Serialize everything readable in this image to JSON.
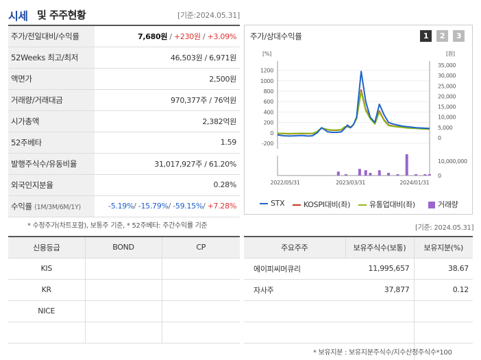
{
  "header": {
    "title_main": "시세",
    "title_rest": "및 주주현황",
    "date": "[기준:2024.05.31]"
  },
  "quote": {
    "rows": [
      {
        "label": "주가/전일대비/수익률",
        "price": "7,680원",
        "sep1": " / ",
        "change": "+230원",
        "sep2": " / ",
        "rate": "+3.09%"
      },
      {
        "label": "52Weeks 최고/최저",
        "value": "46,503원 / 6,971원"
      },
      {
        "label": "액면가",
        "value": "2,500원"
      },
      {
        "label": "거래량/거래대금",
        "value": "970,377주 / 76억원"
      },
      {
        "label": "시가총액",
        "value": "2,382억원"
      },
      {
        "label": "52주베타",
        "value": "1.59"
      },
      {
        "label": "발행주식수/유동비율",
        "value": "31,017,927주 / 61.20%"
      },
      {
        "label": "외국인지분율",
        "value": "0.28%"
      },
      {
        "label": "수익률",
        "label_sub": "(1M/3M/6M/1Y)",
        "r1": "-5.19%",
        "r2": "-15.79%",
        "r3": "-59.15%",
        "r4": "+7.28%",
        "s": "/ "
      }
    ],
    "note": "* 수정주가(차트포함), 보통주 기준, * 52주베타: 주간수익률 기준"
  },
  "chart": {
    "title": "주가/상대수익률",
    "pages": [
      "1",
      "2",
      "3"
    ],
    "left_unit": "[%]",
    "right_unit": "[원]",
    "legend": [
      "STX",
      "KOSPI대비(좌)",
      "유통업대비(좌)",
      "거래량"
    ],
    "colors": {
      "stx": "#1c64c8",
      "kospi": "#c8341c",
      "retail": "#8fba16",
      "volume": "#9966cc"
    }
  },
  "chart_data": {
    "type": "line",
    "left_axis": {
      "ticks": [
        -200,
        0,
        200,
        400,
        600,
        800,
        1000,
        1200
      ],
      "range": [
        -200,
        1300
      ]
    },
    "right_axis": {
      "ticks": [
        "0",
        "5,000",
        "10,000",
        "15,000",
        "20,000",
        "25,000",
        "30,000",
        "35,000"
      ]
    },
    "volume_axis": {
      "ticks": [
        "0",
        "10,000,000"
      ]
    },
    "x_labels": [
      "2022/05/31",
      "2023/03/31",
      "2024/01/31"
    ],
    "x": [
      0,
      4,
      8,
      12,
      16,
      20,
      23,
      26,
      29,
      33,
      36,
      39,
      42,
      44,
      46,
      48,
      50,
      52,
      55,
      58,
      61,
      64,
      67,
      70,
      73,
      76,
      79,
      82,
      85,
      88,
      91,
      94,
      97,
      100
    ],
    "series": [
      {
        "name": "STX",
        "values": [
          -40,
          -55,
          -60,
          -55,
          -50,
          -60,
          -55,
          0,
          100,
          20,
          10,
          10,
          20,
          80,
          150,
          100,
          160,
          300,
          1180,
          600,
          300,
          200,
          550,
          350,
          200,
          170,
          150,
          130,
          120,
          110,
          100,
          95,
          90,
          85
        ]
      },
      {
        "name": "KOSPI대비(좌)",
        "values": [
          -10,
          -15,
          -20,
          -15,
          -12,
          -15,
          -15,
          20,
          90,
          60,
          50,
          50,
          60,
          110,
          120,
          100,
          160,
          280,
          820,
          450,
          280,
          180,
          420,
          250,
          150,
          130,
          120,
          110,
          100,
          95,
          90,
          85,
          80,
          75
        ]
      },
      {
        "name": "유통업대비(좌)",
        "values": [
          -5,
          -10,
          -15,
          -10,
          -8,
          -10,
          -10,
          25,
          95,
          65,
          55,
          55,
          65,
          115,
          125,
          110,
          165,
          270,
          790,
          430,
          270,
          170,
          400,
          240,
          140,
          125,
          115,
          105,
          95,
          90,
          85,
          80,
          75,
          70
        ]
      }
    ],
    "volume": {
      "x": [
        40,
        45,
        54,
        58,
        61,
        67,
        73,
        79,
        85,
        91,
        97,
        100
      ],
      "values": [
        3,
        1,
        5,
        4,
        2,
        4,
        2,
        1,
        16,
        1,
        1,
        1
      ]
    }
  },
  "credit": {
    "headers": [
      "신용등급",
      "BOND",
      "CP"
    ],
    "rows": [
      {
        "name": "KIS",
        "bond": "",
        "cp": ""
      },
      {
        "name": "KR",
        "bond": "",
        "cp": ""
      },
      {
        "name": "NICE",
        "bond": "",
        "cp": ""
      },
      {
        "name": "",
        "bond": "",
        "cp": ""
      }
    ]
  },
  "holders": {
    "date": "[기준: 2024.05.31]",
    "headers": [
      "주요주주",
      "보유주식수(보통)",
      "보유지분(%)"
    ],
    "rows": [
      {
        "name": "에이피씨머큐리",
        "shares": "11,995,657",
        "pct": "38.67"
      },
      {
        "name": "자사주",
        "shares": "37,877",
        "pct": "0.12"
      },
      {
        "name": "",
        "shares": "",
        "pct": ""
      },
      {
        "name": "",
        "shares": "",
        "pct": ""
      },
      {
        "name": "",
        "shares": "",
        "pct": ""
      }
    ],
    "note": "* 보유지분 : 보유지분주식수/지수산정주식수*100"
  }
}
